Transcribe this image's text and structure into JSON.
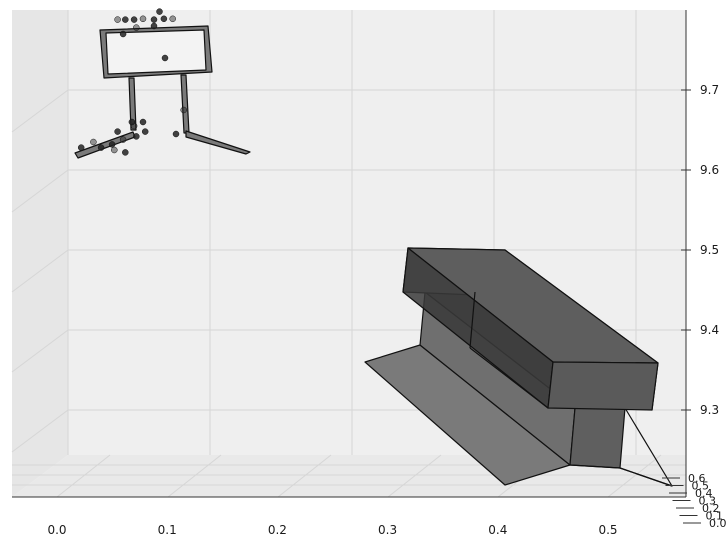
{
  "chart_data": {
    "type": "scatter",
    "projection": "3d",
    "title": "",
    "xlabel": "",
    "ylabel": "",
    "zlabel": "",
    "grid": true,
    "legend": "none",
    "x_ticks": [
      "0.0",
      "0.1",
      "0.2",
      "0.3",
      "0.4",
      "0.5"
    ],
    "z_ticks": [
      "9.3",
      "9.4",
      "9.5",
      "9.6",
      "9.7"
    ],
    "y_ticks": [
      "0.0",
      "0.1",
      "0.2",
      "0.3",
      "0.4",
      "0.5",
      "0.6"
    ],
    "xlim": [
      0.0,
      0.55
    ],
    "zlim": [
      9.22,
      9.8
    ],
    "colors": {
      "pane": "#efefef",
      "grid": "#d8d8d8",
      "mesh_fill": "#6f6f6f",
      "mesh_dark": "#3a3a3a",
      "mesh_edge": "#111111",
      "points": "#222222"
    },
    "meshes": [
      {
        "name": "figure-frame"
      },
      {
        "name": "figure-leg-left"
      },
      {
        "name": "figure-leg-right"
      },
      {
        "name": "figure-foot-left"
      },
      {
        "name": "figure-foot-right"
      },
      {
        "name": "box-top"
      },
      {
        "name": "box-lower"
      },
      {
        "name": "slab"
      }
    ],
    "points": [
      {
        "x": 0.055,
        "z": 9.788
      },
      {
        "x": 0.062,
        "z": 9.788
      },
      {
        "x": 0.07,
        "z": 9.788
      },
      {
        "x": 0.078,
        "z": 9.789
      },
      {
        "x": 0.088,
        "z": 9.788
      },
      {
        "x": 0.097,
        "z": 9.789
      },
      {
        "x": 0.105,
        "z": 9.789
      },
      {
        "x": 0.093,
        "z": 9.798
      },
      {
        "x": 0.088,
        "z": 9.78
      },
      {
        "x": 0.072,
        "z": 9.778
      },
      {
        "x": 0.06,
        "z": 9.77
      },
      {
        "x": 0.098,
        "z": 9.74
      },
      {
        "x": 0.07,
        "z": 9.655
      },
      {
        "x": 0.078,
        "z": 9.66
      },
      {
        "x": 0.068,
        "z": 9.66
      },
      {
        "x": 0.115,
        "z": 9.675
      },
      {
        "x": 0.108,
        "z": 9.645
      },
      {
        "x": 0.055,
        "z": 9.648
      },
      {
        "x": 0.033,
        "z": 9.635
      },
      {
        "x": 0.04,
        "z": 9.628
      },
      {
        "x": 0.05,
        "z": 9.632
      },
      {
        "x": 0.06,
        "z": 9.638
      },
      {
        "x": 0.072,
        "z": 9.642
      },
      {
        "x": 0.08,
        "z": 9.648
      },
      {
        "x": 0.052,
        "z": 9.625
      },
      {
        "x": 0.062,
        "z": 9.622
      },
      {
        "x": 0.022,
        "z": 9.628
      }
    ]
  }
}
